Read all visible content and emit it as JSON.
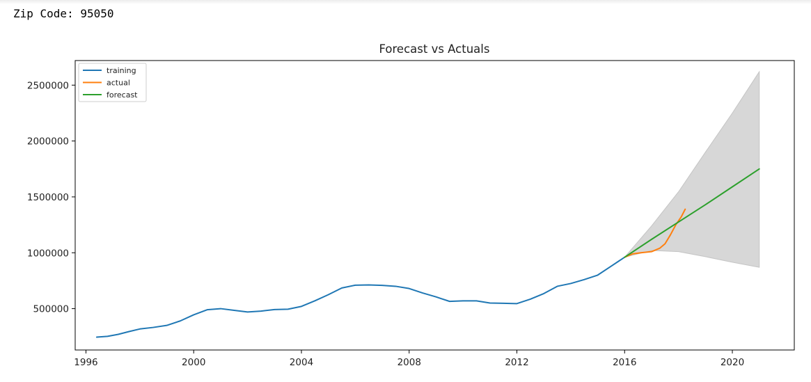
{
  "output": {
    "zip_label": "Zip Code:",
    "zip_value": "95050"
  },
  "chart_data": {
    "type": "line",
    "title": "Forecast vs Actuals",
    "xlabel": "",
    "ylabel": "",
    "xlim": [
      1995.6,
      2022.3
    ],
    "ylim": [
      130000,
      2720000
    ],
    "x_ticks": [
      1996,
      2000,
      2004,
      2008,
      2012,
      2016,
      2020
    ],
    "y_ticks": [
      500000,
      1000000,
      1500000,
      2000000,
      2500000
    ],
    "x_tick_labels": [
      "1996",
      "2000",
      "2004",
      "2008",
      "2012",
      "2016",
      "2020"
    ],
    "y_tick_labels": [
      "500000",
      "1000000",
      "1500000",
      "2000000",
      "2500000"
    ],
    "grid": false,
    "legend": {
      "placement": "upper-left",
      "entries": [
        "training",
        "actual",
        "forecast"
      ]
    },
    "series": [
      {
        "name": "training",
        "color": "#1f77b4",
        "x": [
          1996.4,
          1996.8,
          1997.2,
          1997.6,
          1998.0,
          1998.5,
          1999.0,
          1999.5,
          2000.0,
          2000.5,
          2001.0,
          2001.5,
          2002.0,
          2002.5,
          2003.0,
          2003.5,
          2004.0,
          2004.5,
          2005.0,
          2005.5,
          2006.0,
          2006.5,
          2007.0,
          2007.5,
          2008.0,
          2008.5,
          2009.0,
          2009.5,
          2010.0,
          2010.5,
          2011.0,
          2011.5,
          2012.0,
          2012.5,
          2013.0,
          2013.5,
          2014.0,
          2014.5,
          2015.0,
          2015.5,
          2016.0
        ],
        "y": [
          245000,
          252000,
          270000,
          295000,
          318000,
          332000,
          350000,
          390000,
          445000,
          490000,
          500000,
          485000,
          470000,
          478000,
          492000,
          495000,
          520000,
          570000,
          625000,
          685000,
          710000,
          712000,
          708000,
          700000,
          680000,
          640000,
          605000,
          565000,
          570000,
          570000,
          550000,
          548000,
          545000,
          585000,
          635000,
          700000,
          725000,
          760000,
          800000,
          880000,
          960000
        ]
      },
      {
        "name": "actual",
        "color": "#ff7f0e",
        "x": [
          2016.0,
          2016.3,
          2016.6,
          2017.0,
          2017.3,
          2017.5,
          2017.7,
          2017.9,
          2018.1,
          2018.25
        ],
        "y": [
          960000,
          990000,
          1000000,
          1010000,
          1040000,
          1080000,
          1160000,
          1250000,
          1320000,
          1390000
        ]
      },
      {
        "name": "forecast",
        "color": "#2ca02c",
        "x": [
          2016.0,
          2017.0,
          2018.0,
          2019.0,
          2020.0,
          2021.0
        ],
        "y": [
          960000,
          1120000,
          1275000,
          1430000,
          1590000,
          1750000
        ],
        "ci_lower": [
          960000,
          1020000,
          1010000,
          965000,
          915000,
          870000
        ],
        "ci_upper": [
          960000,
          1240000,
          1545000,
          1900000,
          2250000,
          2620000
        ],
        "ci_color": "#d3d3d3"
      }
    ]
  }
}
